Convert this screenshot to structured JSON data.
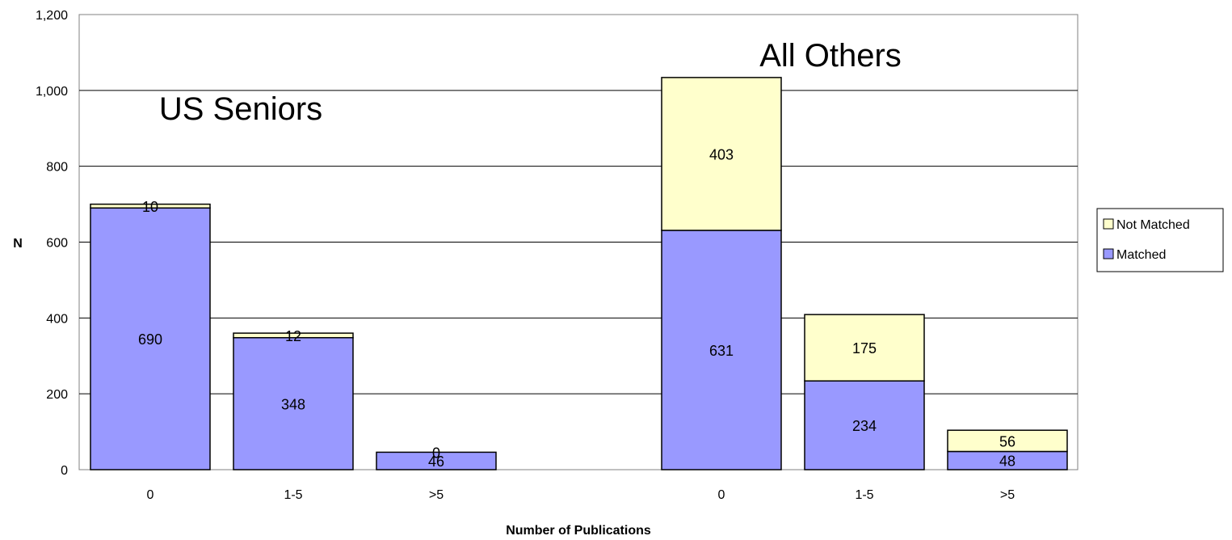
{
  "chart_data": {
    "type": "bar",
    "stacked": true,
    "xlabel": "Number of Publications",
    "ylabel": "N",
    "ylim": [
      0,
      1200
    ],
    "yticks": [
      0,
      200,
      400,
      600,
      800,
      1000,
      1200
    ],
    "ytick_labels": [
      "0",
      "200",
      "400",
      "600",
      "800",
      "1,000",
      "1,200"
    ],
    "grid": true,
    "legend_position": "right",
    "groups": [
      {
        "title": "US Seniors",
        "categories": [
          "0",
          "1-5",
          ">5"
        ]
      },
      {
        "title": "All Others",
        "categories": [
          "0",
          "1-5",
          ">5"
        ]
      }
    ],
    "series": [
      {
        "name": "Matched",
        "color": "#9999ff",
        "values": [
          690,
          348,
          46,
          631,
          234,
          48
        ]
      },
      {
        "name": "Not Matched",
        "color": "#ffffcc",
        "values": [
          10,
          12,
          0,
          403,
          175,
          56
        ]
      }
    ],
    "legend": [
      {
        "name": "Not Matched",
        "color": "#ffffcc"
      },
      {
        "name": "Matched",
        "color": "#9999ff"
      }
    ]
  }
}
